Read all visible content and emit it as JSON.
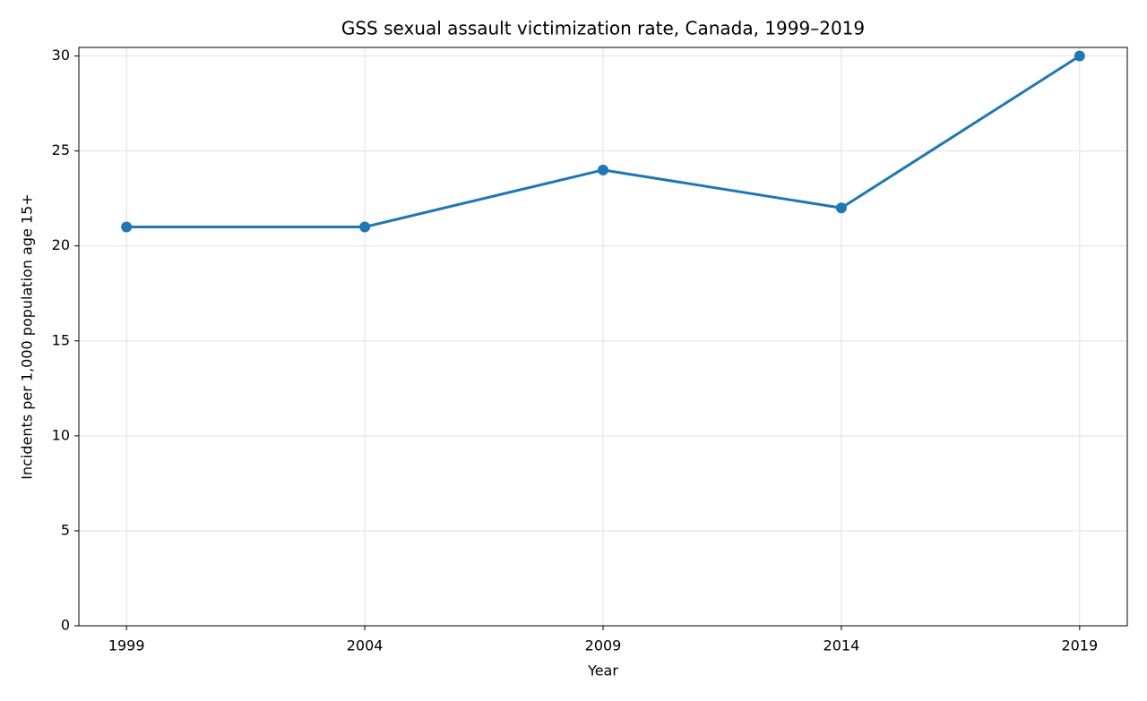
{
  "chart_data": {
    "type": "line",
    "title": "GSS sexual assault victimization rate, Canada, 1999–2019",
    "xlabel": "Year",
    "ylabel": "Incidents per 1,000 population age 15+",
    "x": [
      1999,
      2004,
      2009,
      2014,
      2019
    ],
    "values": [
      21,
      21,
      24,
      22,
      30
    ],
    "color": "#1f77b4",
    "xlim": [
      1998,
      2020
    ],
    "xticks": [
      1999,
      2004,
      2009,
      2014,
      2019
    ],
    "ylim": [
      0,
      30.45
    ],
    "yticks": [
      0,
      5,
      10,
      15,
      20,
      25,
      30
    ],
    "grid": true
  }
}
